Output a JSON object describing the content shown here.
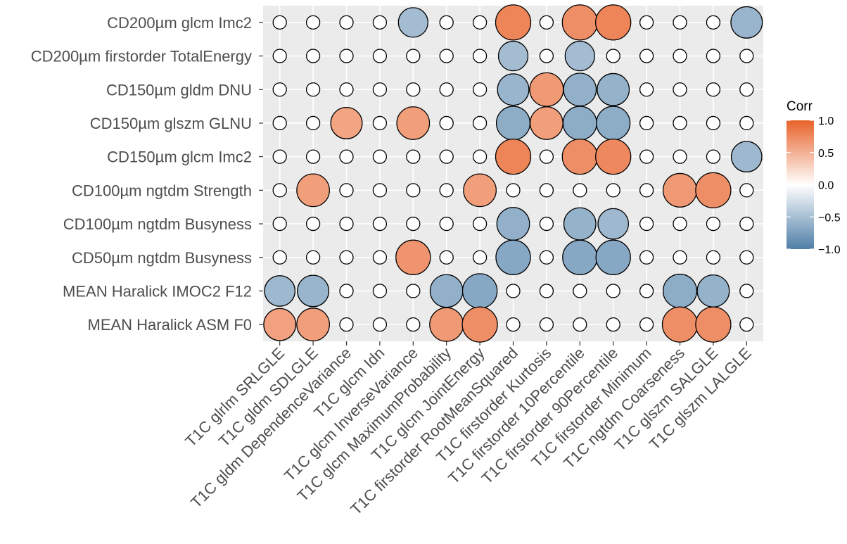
{
  "chart_data": {
    "type": "correlation-bubble",
    "legend": {
      "title": "Corr",
      "ticks": [
        "1.0",
        "0.5",
        "0.0",
        "−0.5",
        "−1.0"
      ],
      "tick_values": [
        1.0,
        0.5,
        0.0,
        -0.5,
        -1.0
      ],
      "placement": "right",
      "colors": {
        "low": "#4f7fa8",
        "mid": "#ffffff",
        "high": "#e8622a"
      }
    },
    "y_categories": [
      "CD200µm glcm Imc2",
      "CD200µm firstorder TotalEnergy",
      "CD150µm gldm DNU",
      "CD150µm glszm GLNU",
      "CD150µm glcm Imc2",
      "CD100µm ngtdm Strength",
      "CD100µm ngtdm Busyness",
      "CD50µm ngtdm Busyness",
      "MEAN Haralick IMOC2 F12",
      "MEAN Haralick ASM F0"
    ],
    "x_categories": [
      "T1C glrlm SRLGLE",
      "T1C gldm SDLGLE",
      "T1C gldm DependenceVariance",
      "T1C glcm Idn",
      "T1C glcm InverseVariance",
      "T1C glcm MaximumProbability",
      "T1C glcm JointEnergy",
      "T1C firstorder RootMeanSquared",
      "T1C firstorder Kurtosis",
      "T1C firstorder 10Percentile",
      "T1C firstorder 90Percentile",
      "T1C firstorder Minimum",
      "T1C ngtdm Coarseness",
      "T1C glszm SALGLE",
      "T1C glszm LALGLE"
    ],
    "values": [
      [
        0,
        0,
        0,
        0,
        -0.52,
        0,
        0,
        0.78,
        0,
        0.72,
        0.78,
        0,
        0,
        0,
        -0.58
      ],
      [
        0,
        0,
        0,
        0,
        0,
        0,
        0,
        -0.52,
        0,
        -0.52,
        0,
        0,
        0,
        0,
        0
      ],
      [
        0,
        0,
        0,
        0,
        0,
        0,
        0,
        -0.58,
        0.65,
        -0.62,
        -0.6,
        0,
        0,
        0,
        0
      ],
      [
        0,
        0,
        0.58,
        0,
        0.62,
        0,
        0,
        -0.65,
        0.62,
        -0.65,
        -0.65,
        0,
        0,
        0,
        0
      ],
      [
        0,
        0,
        0,
        0,
        0,
        0,
        0,
        0.78,
        0,
        0.72,
        0.75,
        0,
        0,
        0,
        -0.55
      ],
      [
        0,
        0.62,
        0,
        0,
        0,
        0,
        0.62,
        0,
        0,
        0,
        0,
        0,
        0.65,
        0.72,
        0
      ],
      [
        0,
        0,
        0,
        0,
        0,
        0,
        0,
        -0.62,
        0,
        -0.6,
        -0.55,
        0,
        0,
        0,
        0
      ],
      [
        0,
        0,
        0,
        0,
        0.68,
        0,
        0,
        -0.68,
        0,
        -0.68,
        -0.68,
        0,
        0,
        0,
        0
      ],
      [
        -0.55,
        -0.58,
        0,
        0,
        0,
        -0.62,
        -0.68,
        0,
        0,
        0,
        0,
        0,
        -0.65,
        -0.6,
        0
      ],
      [
        0.6,
        0.62,
        0,
        0,
        0,
        0.65,
        0.72,
        0,
        0,
        0,
        0,
        0,
        0.72,
        0.72,
        0
      ]
    ],
    "grid": true
  }
}
